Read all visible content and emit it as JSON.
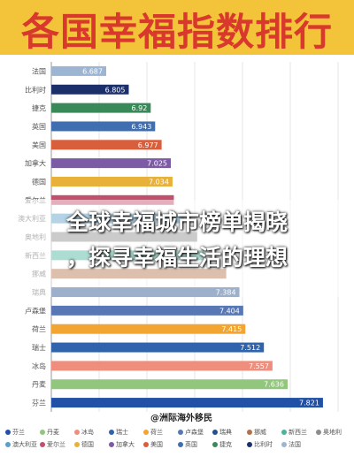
{
  "header": {
    "title": "各国幸福指数排行"
  },
  "overlay": {
    "line1": "全球幸福城市榜单揭晓",
    "line2": "，探寻幸福生活的理想"
  },
  "watermark": "@洲际海外移民",
  "colors": {
    "title_bg": "#f3c33a",
    "title_text": "#d9392c",
    "bar_value_text": "#ffffff"
  },
  "chart_data": {
    "type": "bar",
    "orientation": "horizontal",
    "categories": [
      "法国",
      "比利时",
      "捷克",
      "英国",
      "美国",
      "加拿大",
      "德国",
      "爱尔兰",
      "澳大利亚",
      "奥地利",
      "新西兰",
      "挪威",
      "瑞典",
      "卢森堡",
      "荷兰",
      "瑞士",
      "冰岛",
      "丹麦",
      "芬兰"
    ],
    "values": [
      6.687,
      6.805,
      6.92,
      6.943,
      6.977,
      7.025,
      7.034,
      7.041,
      7.095,
      7.163,
      7.2,
      7.315,
      7.384,
      7.404,
      7.415,
      7.512,
      7.557,
      7.636,
      7.821
    ],
    "value_labels": [
      "6.687",
      "6.805",
      "6.92",
      "6.943",
      "6.977",
      "7.025",
      "7.034",
      "",
      "",
      "",
      "",
      "",
      "7.384",
      "7.404",
      "7.415",
      "7.512",
      "7.557",
      "7.636",
      "7.821"
    ],
    "bar_colors": [
      "#9cb5d3",
      "#1b2f6b",
      "#3a8a59",
      "#3f6fb0",
      "#d95f3c",
      "#7c5aa6",
      "#e8b13a",
      "#c14f6e",
      "#5aa0c8",
      "#8c8c8c",
      "#49b39b",
      "#b3714a",
      "#24508e",
      "#5878b5",
      "#f3a532",
      "#2f64ad",
      "#f08e7d",
      "#92c67c",
      "#2150a6"
    ],
    "xlim": [
      6.4,
      7.9
    ],
    "grid": true,
    "legend_position": "bottom",
    "legend": [
      "芬兰",
      "丹麦",
      "冰岛",
      "瑞士",
      "荷兰",
      "卢森堡",
      "瑞典",
      "挪威",
      "新西兰",
      "奥地利",
      "澳大利亚",
      "爱尔兰",
      "德国",
      "加拿大",
      "美国",
      "英国",
      "捷克",
      "比利时",
      "法国"
    ]
  }
}
